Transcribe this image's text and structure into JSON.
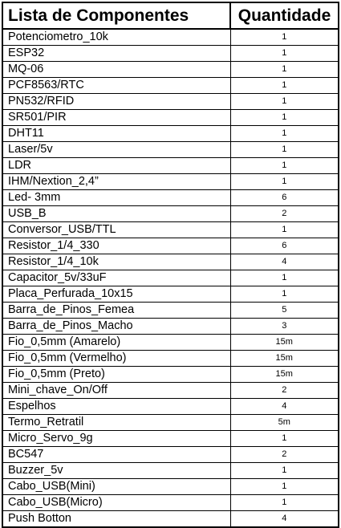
{
  "headers": {
    "component": "Lista de Componentes",
    "quantity": "Quantidade"
  },
  "rows": [
    {
      "name": "Potenciometro_10k",
      "qty": "1"
    },
    {
      "name": "ESP32",
      "qty": "1"
    },
    {
      "name": "MQ-06",
      "qty": "1"
    },
    {
      "name": "PCF8563/RTC",
      "qty": "1"
    },
    {
      "name": "PN532/RFID",
      "qty": "1"
    },
    {
      "name": "SR501/PIR",
      "qty": "1"
    },
    {
      "name": "DHT11",
      "qty": "1"
    },
    {
      "name": "Laser/5v",
      "qty": "1"
    },
    {
      "name": "LDR",
      "qty": "1"
    },
    {
      "name": "IHM/Nextion_2,4”",
      "qty": "1"
    },
    {
      "name": "Led- 3mm",
      "qty": "6"
    },
    {
      "name": "USB_B",
      "qty": "2"
    },
    {
      "name": "Conversor_USB/TTL",
      "qty": "1"
    },
    {
      "name": "Resistor_1/4_330",
      "qty": "6"
    },
    {
      "name": "Resistor_1/4_10k",
      "qty": "4"
    },
    {
      "name": "Capacitor_5v/33uF",
      "qty": "1"
    },
    {
      "name": "Placa_Perfurada_10x15",
      "qty": "1"
    },
    {
      "name": "Barra_de_Pinos_Femea",
      "qty": "5"
    },
    {
      "name": "Barra_de_Pinos_Macho",
      "qty": "3"
    },
    {
      "name": "Fio_0,5mm (Amarelo)",
      "qty": "15m"
    },
    {
      "name": "Fio_0,5mm (Vermelho)",
      "qty": "15m"
    },
    {
      "name": "Fio_0,5mm (Preto)",
      "qty": "15m"
    },
    {
      "name": "Mini_chave_On/Off",
      "qty": "2"
    },
    {
      "name": "Espelhos",
      "qty": "4"
    },
    {
      "name": "Termo_Retratil",
      "qty": "5m"
    },
    {
      "name": "Micro_Servo_9g",
      "qty": "1"
    },
    {
      "name": "BC547",
      "qty": "2"
    },
    {
      "name": "Buzzer_5v",
      "qty": "1"
    },
    {
      "name": "Cabo_USB(Mini)",
      "qty": "1"
    },
    {
      "name": "Cabo_USB(Micro)",
      "qty": "1"
    },
    {
      "name": " Push Botton",
      "qty": "4"
    }
  ]
}
